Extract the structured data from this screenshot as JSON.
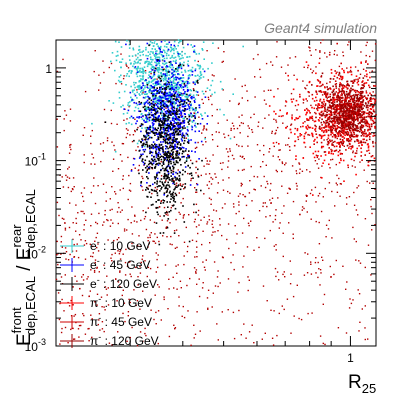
{
  "chart_data": {
    "type": "scatter",
    "annotation": "Geant4 simulation",
    "xlabel": "R",
    "xlabel_sub": "25",
    "ylabel_main": "E",
    "ylabel_sup1": "front",
    "ylabel_sub1": "dep,ECAL",
    "ylabel_sep": " / E",
    "ylabel_sup2": "rear",
    "ylabel_sub2": "dep,ECAL",
    "xlim": [
      0.2,
      1.15
    ],
    "ylim": [
      0.001,
      2.0
    ],
    "yscale": "log",
    "xscale": "log",
    "x_ticks": [
      {
        "value": 1,
        "label": "1"
      }
    ],
    "y_ticks": [
      {
        "value": 0.001,
        "label": "10",
        "exp": "-3"
      },
      {
        "value": 0.01,
        "label": "10",
        "exp": "-2"
      },
      {
        "value": 0.1,
        "label": "10",
        "exp": "-1"
      },
      {
        "value": 1,
        "label": "1",
        "exp": ""
      }
    ],
    "legend_placement": "bottom-left",
    "series": [
      {
        "name": "e",
        "sup": "-",
        "energy": ": 10 GeV",
        "color": "#33cccc",
        "cluster": {
          "x": 0.36,
          "y": 0.75,
          "sx": 0.05,
          "sy": 0.28,
          "n": 900
        }
      },
      {
        "name": "e",
        "sup": "-",
        "energy": ": 45 GeV",
        "color": "#0000ff",
        "cluster": {
          "x": 0.365,
          "y": 0.32,
          "sx": 0.035,
          "sy": 0.3,
          "n": 700
        }
      },
      {
        "name": "e",
        "sup": "-",
        "energy": ": 120 GeV",
        "color": "#000000",
        "cluster": {
          "x": 0.365,
          "y": 0.14,
          "sx": 0.03,
          "sy": 0.35,
          "n": 700
        }
      },
      {
        "name": "π",
        "sup": "-",
        "energy": ": 10 GeV",
        "color": "#ff0000",
        "cluster": {
          "x": 0.95,
          "y": 0.3,
          "sx": 0.06,
          "sy": 0.25,
          "n": 500
        }
      },
      {
        "name": "π",
        "sup": "-",
        "energy": ": 45 GeV",
        "color": "#cc0000",
        "cluster": {
          "x": 0.98,
          "y": 0.32,
          "sx": 0.04,
          "sy": 0.2,
          "n": 500
        }
      },
      {
        "name": "π",
        "sup": "-",
        "energy": ": 120 GeV",
        "color": "#990000",
        "cluster": {
          "x": 0.99,
          "y": 0.33,
          "sx": 0.03,
          "sy": 0.15,
          "n": 500
        }
      }
    ],
    "hadron_scatter": {
      "color": "#b30000",
      "n": 1400
    }
  }
}
